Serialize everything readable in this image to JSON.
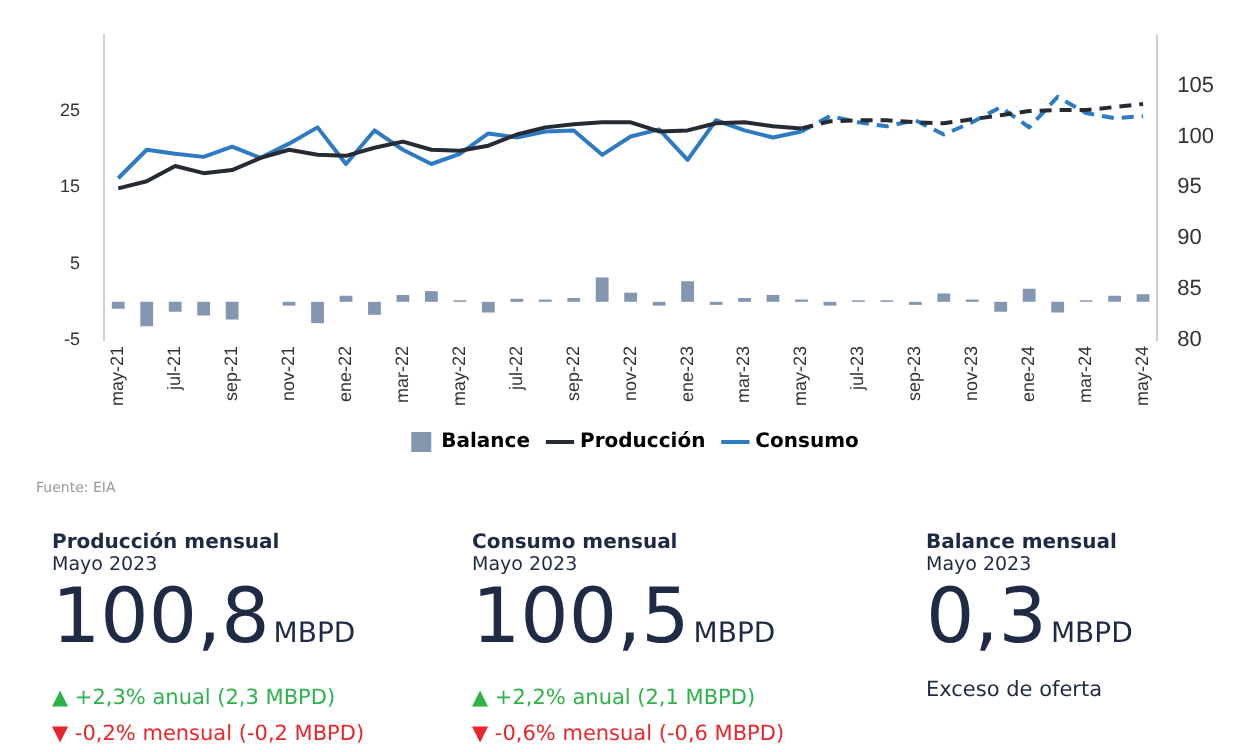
{
  "chart_data": [
    {
      "type": "line",
      "categories": [
        "may-21",
        null,
        "jul-21",
        null,
        "sep-21",
        null,
        "nov-21",
        null,
        "ene-22",
        null,
        "mar-22",
        null,
        "may-22",
        null,
        "jul-22",
        null,
        "sep-22",
        null,
        "nov-22",
        null,
        "ene-23",
        null,
        "mar-23",
        null,
        "may-23",
        null,
        "jul-23",
        null,
        "sep-23",
        null,
        "nov-23",
        null,
        "ene-24",
        null,
        "mar-24",
        null,
        "may-24"
      ],
      "series": [
        {
          "name": "Balance",
          "type": "bar",
          "color": "#8497b0",
          "values": [
            -0.9,
            -3.2,
            -1.3,
            -1.8,
            -2.3,
            0,
            -0.5,
            -2.8,
            0.8,
            -1.7,
            0.9,
            1.4,
            0.2,
            -1.4,
            0.4,
            0.3,
            0.5,
            3.2,
            1.2,
            -0.5,
            2.7,
            -0.4,
            0.5,
            0.9,
            0.3,
            -0.5,
            0.2,
            0.2,
            -0.4,
            1.1,
            0.3,
            -1.3,
            1.7,
            -1.4,
            0.2,
            0.8,
            1.0
          ]
        },
        {
          "name": "Producción",
          "axis": "y2",
          "color": "#262b33",
          "values": [
            94.9,
            95.6,
            97.1,
            96.4,
            96.7,
            97.9,
            98.7,
            98.2,
            98.1,
            98.9,
            99.5,
            98.7,
            98.6,
            99.1,
            100.2,
            100.9,
            101.2,
            101.4,
            101.4,
            100.5,
            100.6,
            101.3,
            101.4,
            101.0,
            100.8,
            null,
            null,
            null,
            null,
            null,
            null,
            null,
            null,
            null,
            null,
            null,
            null
          ]
        },
        {
          "name": "Consumo",
          "axis": "y2",
          "color": "#2e7bc4",
          "values": [
            95.9,
            98.7,
            98.3,
            98.0,
            99.0,
            97.9,
            99.3,
            100.9,
            97.3,
            100.6,
            98.7,
            97.3,
            98.3,
            100.3,
            99.9,
            100.5,
            100.6,
            98.2,
            100.0,
            100.7,
            97.7,
            101.6,
            100.6,
            99.9,
            100.5,
            null,
            null,
            null,
            null,
            null,
            null,
            null,
            null,
            null,
            null,
            null,
            null
          ]
        },
        {
          "axis": "y2",
          "color": "#262b33",
          "line_style": "dashed",
          "values": [
            null,
            null,
            null,
            null,
            null,
            null,
            null,
            null,
            null,
            null,
            null,
            null,
            null,
            null,
            null,
            null,
            null,
            null,
            null,
            null,
            null,
            null,
            null,
            null,
            100.8,
            101.5,
            101.6,
            101.6,
            101.4,
            101.3,
            101.7,
            102.1,
            102.5,
            102.6,
            102.6,
            102.9,
            103.2
          ]
        },
        {
          "axis": "y2",
          "color": "#2e7bc4",
          "line_style": "dashed",
          "values": [
            null,
            null,
            null,
            null,
            null,
            null,
            null,
            null,
            null,
            null,
            null,
            null,
            null,
            null,
            null,
            null,
            null,
            null,
            null,
            null,
            null,
            null,
            null,
            null,
            100.5,
            102.0,
            101.4,
            101.0,
            101.6,
            100.2,
            101.4,
            102.9,
            100.9,
            103.9,
            102.3,
            101.8,
            102.0
          ]
        }
      ],
      "ylim": [
        -5,
        35
      ],
      "yticks": [
        -5,
        5,
        15,
        25
      ],
      "y2lim": [
        80,
        110
      ],
      "y2ticks": [
        80,
        85,
        90,
        95,
        100,
        105
      ],
      "grid": false,
      "legend": "bottom",
      "marker": "none",
      "annotations": [
        "Fuente: EIA"
      ]
    },
    {
      "type": "other",
      "title": "Producción mensual",
      "subtitle": "Mayo 2023",
      "annotations": [
        "100,8",
        "MBPD",
        "▲ +2,3% anual (2,3 MBPD)",
        "▼ -0,2% mensual (-0,2 MBPD)"
      ]
    },
    {
      "type": "other",
      "title": "Consumo mensual",
      "subtitle": "Mayo 2023",
      "annotations": [
        "100,5",
        "MBPD",
        "▲ +2,2% anual (2,1 MBPD)",
        "▼ -0,6% mensual (-0,6 MBPD)"
      ]
    },
    {
      "type": "other",
      "title": "Balance mensual",
      "subtitle": "Mayo 2023",
      "annotations": [
        "0,3",
        "MBPD",
        "Exceso de oferta"
      ]
    }
  ]
}
